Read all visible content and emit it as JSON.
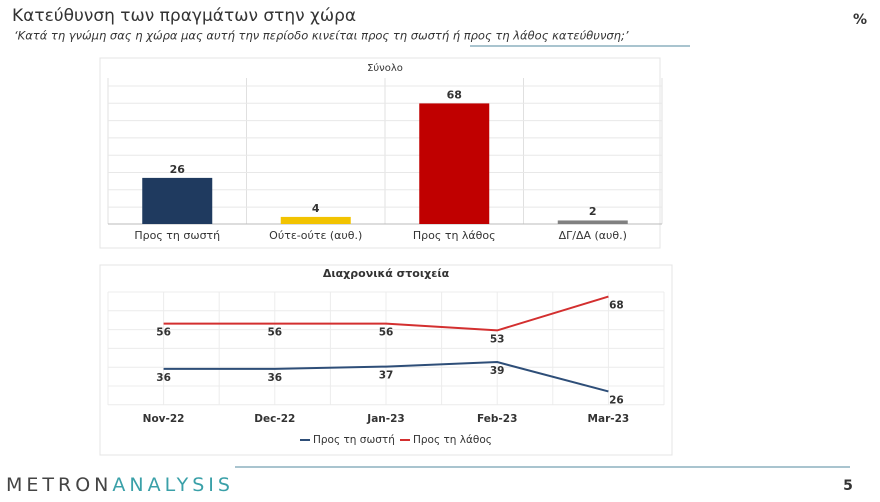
{
  "header": {
    "title": "Κατεύθυνση των πραγμάτων στην χώρα",
    "subtitle": "‘Κατά τη γνώμη σας η χώρα μας αυτή την περίοδο κινείται προς τη σωστή ή προς τη λάθος κατεύθυνση;’",
    "unit": "%"
  },
  "chart_data": [
    {
      "type": "bar",
      "title": "Σύνολο",
      "categories": [
        "Προς τη σωστή",
        "Ούτε-ούτε (αυθ.)",
        "Προς τη λάθος",
        "ΔΓ/ΔΑ (αυθ.)"
      ],
      "values": [
        26,
        4,
        68,
        2
      ],
      "colors": [
        "#1f3a5f",
        "#f2c300",
        "#c00000",
        "#808080"
      ],
      "ylim": [
        0,
        75
      ]
    },
    {
      "type": "line",
      "title": "Διαχρονικά στοιχεία",
      "categories": [
        "Nov-22",
        "Dec-22",
        "Jan-23",
        "Feb-23",
        "Mar-23"
      ],
      "ylim": [
        20,
        70
      ],
      "legend": "bottom",
      "series": [
        {
          "name": "Προς τη σωστή",
          "color": "#2e4e78",
          "values": [
            36,
            36,
            37,
            39,
            26
          ]
        },
        {
          "name": "Προς τη λάθος",
          "color": "#d32f2f",
          "values": [
            56,
            56,
            56,
            53,
            68
          ]
        }
      ]
    }
  ],
  "footer": {
    "logo_dark": "METRON",
    "logo_light": "ANALYSIS",
    "page_number": 5
  }
}
